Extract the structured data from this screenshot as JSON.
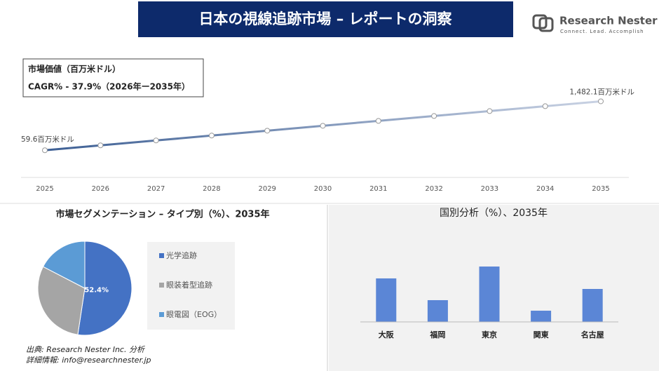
{
  "header": {
    "title": "日本の視線追跡市場 – レポートの洞察",
    "logo_name": "Research Nester",
    "logo_tagline": "Connect. Lead. Accomplish"
  },
  "chart_data": [
    {
      "type": "line",
      "subtitle": "市場価値（百万米ドル）",
      "annotation": "CAGR% - 37.9%（2026年ー2035年）",
      "categories": [
        "2025",
        "2026",
        "2027",
        "2028",
        "2029",
        "2030",
        "2031",
        "2032",
        "2033",
        "2034",
        "2035"
      ],
      "values": [
        59.6,
        82.2,
        113.3,
        156.3,
        215.5,
        297.2,
        409.8,
        565.1,
        779.3,
        1074.7,
        1482.1
      ],
      "value_labels": [
        "59.6百万米ドル",
        null,
        null,
        null,
        null,
        null,
        null,
        null,
        null,
        null,
        "1,482.1百万米ドル"
      ],
      "color": "#3d5f94",
      "color_end": "#c9d2e3",
      "yscale": "log",
      "ylim": [
        10,
        10000
      ]
    },
    {
      "type": "pie",
      "title": "市場セグメンテーション – タイプ別（%）、2035年",
      "categories": [
        "光学追跡",
        "眼装着型追跡",
        "眼電図（EOG）"
      ],
      "values": [
        52.4,
        30.2,
        17.4
      ],
      "value_labels": [
        "52.4%",
        null,
        null
      ],
      "colors": [
        "#4472c4",
        "#a5a5a5",
        "#5b9bd5"
      ]
    },
    {
      "type": "bar",
      "title": "国別分析（%）、2035年",
      "categories": [
        "大阪",
        "福岡",
        "東京",
        "関東",
        "名古屋"
      ],
      "values": [
        26.4,
        13.2,
        33.6,
        6.8,
        20.0
      ],
      "color": "#5b86d6",
      "ylim": [
        0,
        40
      ]
    }
  ],
  "source": "出典: Research Nester Inc. 分析",
  "contact": "詳細情報: info@researchnester.jp"
}
